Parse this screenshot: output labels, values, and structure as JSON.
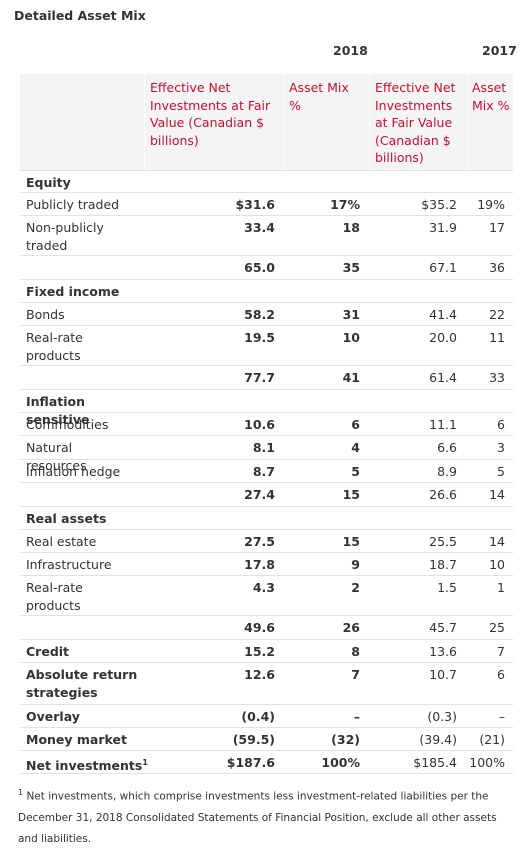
{
  "title": "Detailed Asset Mix",
  "years": {
    "y2018": "2018",
    "y2017": "2017"
  },
  "headers": {
    "net_2018": "Effective Net Investments at Fair Value (Canadian $ billions)",
    "mix_2018": "Asset Mix %",
    "net_2017": "Effective Net Investments at Fair Value (Canadian $ billions)",
    "mix_2017": "Asset Mix %"
  },
  "rows": [
    {
      "label": "Equity",
      "section": true
    },
    {
      "label": "Publicly traded",
      "v1": "$31.6",
      "v2": "17%",
      "v3": "$35.2",
      "v4": "19%"
    },
    {
      "label": "Non-publicly traded",
      "v1": "33.4",
      "v2": "18",
      "v3": "31.9",
      "v4": "17"
    },
    {
      "label": "",
      "v1": "65.0",
      "v2": "35",
      "v3": "67.1",
      "v4": "36"
    },
    {
      "label": "Fixed income",
      "section": true
    },
    {
      "label": "Bonds",
      "v1": "58.2",
      "v2": "31",
      "v3": "41.4",
      "v4": "22"
    },
    {
      "label": "Real-rate products",
      "v1": "19.5",
      "v2": "10",
      "v3": "20.0",
      "v4": "11"
    },
    {
      "label": "",
      "v1": "77.7",
      "v2": "41",
      "v3": "61.4",
      "v4": "33"
    },
    {
      "label": "Inflation sensitive",
      "section": true
    },
    {
      "label": "Commodities",
      "v1": "10.6",
      "v2": "6",
      "v3": "11.1",
      "v4": "6"
    },
    {
      "label": "Natural resources",
      "v1": "8.1",
      "v2": "4",
      "v3": "6.6",
      "v4": "3"
    },
    {
      "label": "Inflation hedge",
      "v1": "8.7",
      "v2": "5",
      "v3": "8.9",
      "v4": "5"
    },
    {
      "label": "",
      "v1": "27.4",
      "v2": "15",
      "v3": "26.6",
      "v4": "14"
    },
    {
      "label": "Real assets",
      "section": true
    },
    {
      "label": "Real estate",
      "v1": "27.5",
      "v2": "15",
      "v3": "25.5",
      "v4": "14"
    },
    {
      "label": "Infrastructure",
      "v1": "17.8",
      "v2": "9",
      "v3": "18.7",
      "v4": "10"
    },
    {
      "label": "Real-rate products",
      "v1": "4.3",
      "v2": "2",
      "v3": "1.5",
      "v4": "1"
    },
    {
      "label": "",
      "v1": "49.6",
      "v2": "26",
      "v3": "45.7",
      "v4": "25"
    },
    {
      "label": "Credit",
      "section": true,
      "v1": "15.2",
      "v2": "8",
      "v3": "13.6",
      "v4": "7"
    },
    {
      "label": "Absolute return strategies",
      "section": true,
      "v1": "12.6",
      "v2": "7",
      "v3": "10.7",
      "v4": "6"
    },
    {
      "label": "Overlay",
      "section": true,
      "v1": "(0.4)",
      "v2": "–",
      "v3": "(0.3)",
      "v4": "–"
    },
    {
      "label": "Money market",
      "section": true,
      "v1": "(59.5)",
      "v2": "(32)",
      "v3": "(39.4)",
      "v4": "(21)"
    },
    {
      "label": "Net investments",
      "sup": "1",
      "section": true,
      "v1": "$187.6",
      "v2": "100%",
      "v3": "$185.4",
      "v4": "100%"
    }
  ],
  "footnote": {
    "marker": "1",
    "text": "Net investments, which comprise investments less investment-related liabilities per the December 31, 2018 Consolidated Statements of Financial Position, exclude all other assets and liabilities."
  }
}
